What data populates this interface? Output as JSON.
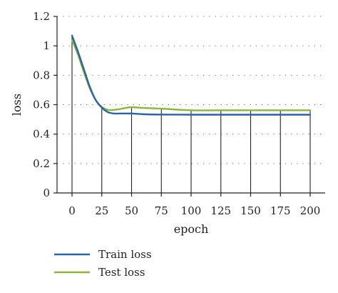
{
  "chart_data": {
    "type": "line",
    "xlabel": "epoch",
    "ylabel": "loss",
    "xlim": [
      0,
      200
    ],
    "ylim": [
      0,
      1.2
    ],
    "x_ticks": [
      "0",
      "25",
      "50",
      "75",
      "100",
      "125",
      "150",
      "175",
      "200"
    ],
    "y_ticks": [
      "0",
      "0.2",
      "0.4",
      "0.6",
      "0.8",
      "1",
      "1.2"
    ],
    "grid": "horizontal dotted",
    "legend": "bottom-left",
    "series": [
      {
        "name": "Train loss",
        "color": "#2a63a8",
        "x": [
          0,
          5,
          10,
          15,
          20,
          25,
          30,
          35,
          40,
          45,
          50,
          60,
          75,
          100,
          125,
          150,
          175,
          200
        ],
        "y": [
          1.07,
          0.96,
          0.84,
          0.72,
          0.63,
          0.58,
          0.55,
          0.54,
          0.54,
          0.54,
          0.54,
          0.535,
          0.533,
          0.532,
          0.532,
          0.532,
          0.532,
          0.532
        ]
      },
      {
        "name": "Test loss",
        "color": "#8ab63c",
        "x": [
          0,
          5,
          10,
          15,
          20,
          25,
          30,
          35,
          40,
          45,
          50,
          60,
          75,
          100,
          125,
          150,
          175,
          200
        ],
        "y": [
          1.04,
          0.94,
          0.82,
          0.71,
          0.63,
          0.585,
          0.565,
          0.565,
          0.57,
          0.578,
          0.583,
          0.578,
          0.573,
          0.562,
          0.562,
          0.562,
          0.562,
          0.562
        ]
      }
    ]
  }
}
